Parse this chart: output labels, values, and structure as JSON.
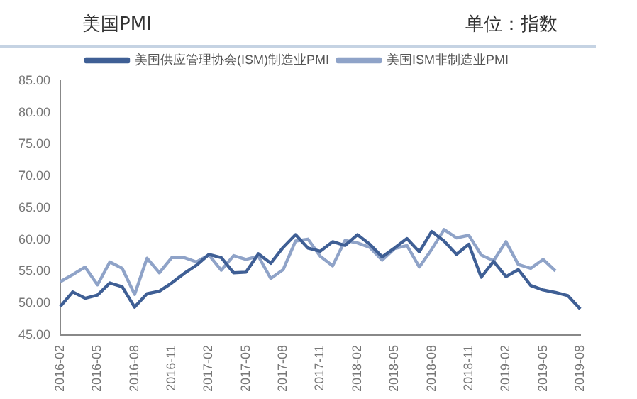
{
  "chart_data": {
    "type": "line",
    "title": "美国PMI",
    "annotations": [
      "单位：指数"
    ],
    "categories": [
      "2016-02",
      null,
      null,
      "2016-05",
      null,
      null,
      "2016-08",
      null,
      null,
      "2016-11",
      null,
      null,
      "2017-02",
      null,
      null,
      "2017-05",
      null,
      null,
      "2017-08",
      null,
      null,
      "2017-11",
      null,
      null,
      "2018-02",
      null,
      null,
      "2018-05",
      null,
      null,
      "2018-08",
      null,
      null,
      "2018-11",
      null,
      null,
      "2019-02",
      null,
      null,
      "2019-05",
      null,
      null,
      "2019-08"
    ],
    "series": [
      {
        "name": "美国供应管理协会(ISM)制造业PMI",
        "color": "#3f5f95",
        "values": [
          49.5,
          51.8,
          50.8,
          51.3,
          53.2,
          52.6,
          49.4,
          51.5,
          51.9,
          53.2,
          54.7,
          56.0,
          57.7,
          57.2,
          54.8,
          54.9,
          57.8,
          56.3,
          58.8,
          60.8,
          58.7,
          58.2,
          59.7,
          59.1,
          60.8,
          59.3,
          57.3,
          58.7,
          60.2,
          58.1,
          61.3,
          59.8,
          57.7,
          59.3,
          54.1,
          56.6,
          54.2,
          55.3,
          52.8,
          52.1,
          51.7,
          51.2,
          49.1
        ]
      },
      {
        "name": "美国ISM非制造业PMI",
        "color": "#8fa3c8",
        "values": [
          53.4,
          54.5,
          55.7,
          52.9,
          56.5,
          55.5,
          51.4,
          57.1,
          54.8,
          57.2,
          57.2,
          56.5,
          57.6,
          55.2,
          57.5,
          56.9,
          57.4,
          53.9,
          55.3,
          59.8,
          60.1,
          57.4,
          55.9,
          59.9,
          59.5,
          58.8,
          56.8,
          58.6,
          59.1,
          55.7,
          58.5,
          61.6,
          60.3,
          60.7,
          57.6,
          56.7,
          59.7,
          56.1,
          55.5,
          56.9,
          55.1,
          null,
          null
        ]
      }
    ],
    "ylim": [
      45,
      85
    ],
    "yticks": [
      {
        "value": 45,
        "label": "45.00"
      },
      {
        "value": 50,
        "label": "50.00"
      },
      {
        "value": 55,
        "label": "55.00"
      },
      {
        "value": 60,
        "label": "60.00"
      },
      {
        "value": 65,
        "label": "65.00"
      },
      {
        "value": 70,
        "label": "70.00"
      },
      {
        "value": 75,
        "label": "75.00"
      },
      {
        "value": 80,
        "label": "80.00"
      },
      {
        "value": 85,
        "label": "85.00"
      }
    ],
    "grid": false,
    "legend": "top",
    "marker": "none",
    "line_style": "solid"
  }
}
